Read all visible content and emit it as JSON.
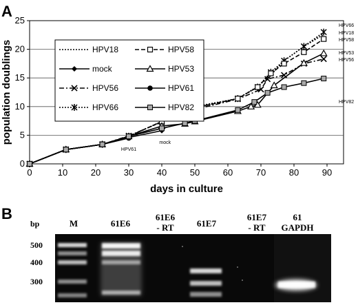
{
  "panel_a": {
    "letter": "A"
  },
  "panel_b": {
    "letter": "B",
    "bp_label": "bp",
    "ladder": [
      "500",
      "400",
      "300"
    ],
    "lanes": [
      {
        "lines": [
          "M"
        ]
      },
      {
        "lines": [
          "61E6"
        ]
      },
      {
        "lines": [
          "61E6",
          "- RT"
        ]
      },
      {
        "lines": [
          "61E7"
        ]
      },
      {
        "lines": [
          "61E7",
          "- RT"
        ]
      },
      {
        "lines": [
          "61",
          "GAPDH"
        ]
      }
    ]
  },
  "chart_data": {
    "type": "line",
    "xlabel": "days in culture",
    "ylabel": "population doublings",
    "xlim": [
      0,
      95
    ],
    "ylim": [
      0,
      25
    ],
    "xticks": [
      0,
      10,
      20,
      30,
      40,
      50,
      60,
      70,
      80,
      90
    ],
    "yticks": [
      0,
      5,
      10,
      15,
      20,
      25
    ],
    "grid": "horizontal",
    "legend_position": "upper-left",
    "annotations": [
      {
        "text": "HPV61",
        "x": 30,
        "y": 3.5
      },
      {
        "text": "mock",
        "x": 41,
        "y": 4.7
      }
    ],
    "series": [
      {
        "name": "HPV18",
        "end_label": "HPV18",
        "style": "dotted",
        "marker": "none",
        "x": [
          0,
          11,
          22,
          30,
          40,
          47,
          50,
          63,
          69,
          73,
          77,
          83,
          89
        ],
        "y": [
          0,
          2.5,
          3.4,
          4.8,
          7.4,
          9.2,
          10,
          11.4,
          13.5,
          15.5,
          18,
          20.5,
          22.6
        ]
      },
      {
        "name": "mock",
        "end_label": "",
        "style": "solid",
        "marker": "diamond",
        "x": [
          0,
          11,
          22,
          30,
          40
        ],
        "y": [
          0,
          2.5,
          3.4,
          4.6,
          5.8
        ]
      },
      {
        "name": "HPV56",
        "end_label": "HPV56",
        "style": "dashdot",
        "marker": "x",
        "x": [
          0,
          11,
          22,
          30,
          40,
          47,
          50,
          63,
          70,
          72,
          77,
          83,
          89
        ],
        "y": [
          0,
          2.5,
          3.4,
          4.9,
          7.3,
          9,
          9.5,
          11.3,
          13,
          14.8,
          15.5,
          17.5,
          18.3
        ]
      },
      {
        "name": "HPV66",
        "end_label": "HPV66",
        "style": "dotted",
        "marker": "asterisk",
        "x": [
          0,
          11,
          22,
          30,
          40,
          47,
          50,
          63,
          69,
          73,
          77,
          83,
          89
        ],
        "y": [
          0,
          2.5,
          3.4,
          4.8,
          7.4,
          9.3,
          9.8,
          11.4,
          13.4,
          16,
          18,
          20.5,
          23
        ]
      },
      {
        "name": "HPV58",
        "end_label": "HPV58",
        "style": "dashed",
        "marker": "open-square",
        "x": [
          0,
          11,
          22,
          30,
          40,
          47,
          50,
          63,
          69,
          73,
          77,
          83,
          89
        ],
        "y": [
          0,
          2.5,
          3.4,
          4.8,
          7.4,
          9,
          9.8,
          11.4,
          13.4,
          15.8,
          17.5,
          19.5,
          21.8
        ]
      },
      {
        "name": "HPV53",
        "end_label": "HPV53",
        "style": "solid",
        "marker": "open-triangle",
        "x": [
          0,
          11,
          22,
          30,
          40,
          47,
          50,
          63,
          67,
          69,
          74,
          83,
          89
        ],
        "y": [
          0,
          2.5,
          3.4,
          4.8,
          6.6,
          7,
          7.4,
          9.2,
          10,
          10.3,
          13.7,
          17.6,
          19.3
        ]
      },
      {
        "name": "HPV61",
        "end_label": "",
        "style": "solid",
        "marker": "filled-circle",
        "x": [
          0,
          11,
          22,
          30
        ],
        "y": [
          0,
          2.5,
          3.4,
          4.5
        ]
      },
      {
        "name": "HPV82",
        "end_label": "HPV82",
        "style": "solid",
        "marker": "filled-square",
        "x": [
          0,
          11,
          22,
          30,
          40,
          47,
          50,
          63,
          68,
          72,
          77,
          83,
          89
        ],
        "y": [
          0,
          2.5,
          3.4,
          4.8,
          6.2,
          7.1,
          7.5,
          9.4,
          10.8,
          12.4,
          13.4,
          14.1,
          14.9
        ]
      }
    ]
  }
}
